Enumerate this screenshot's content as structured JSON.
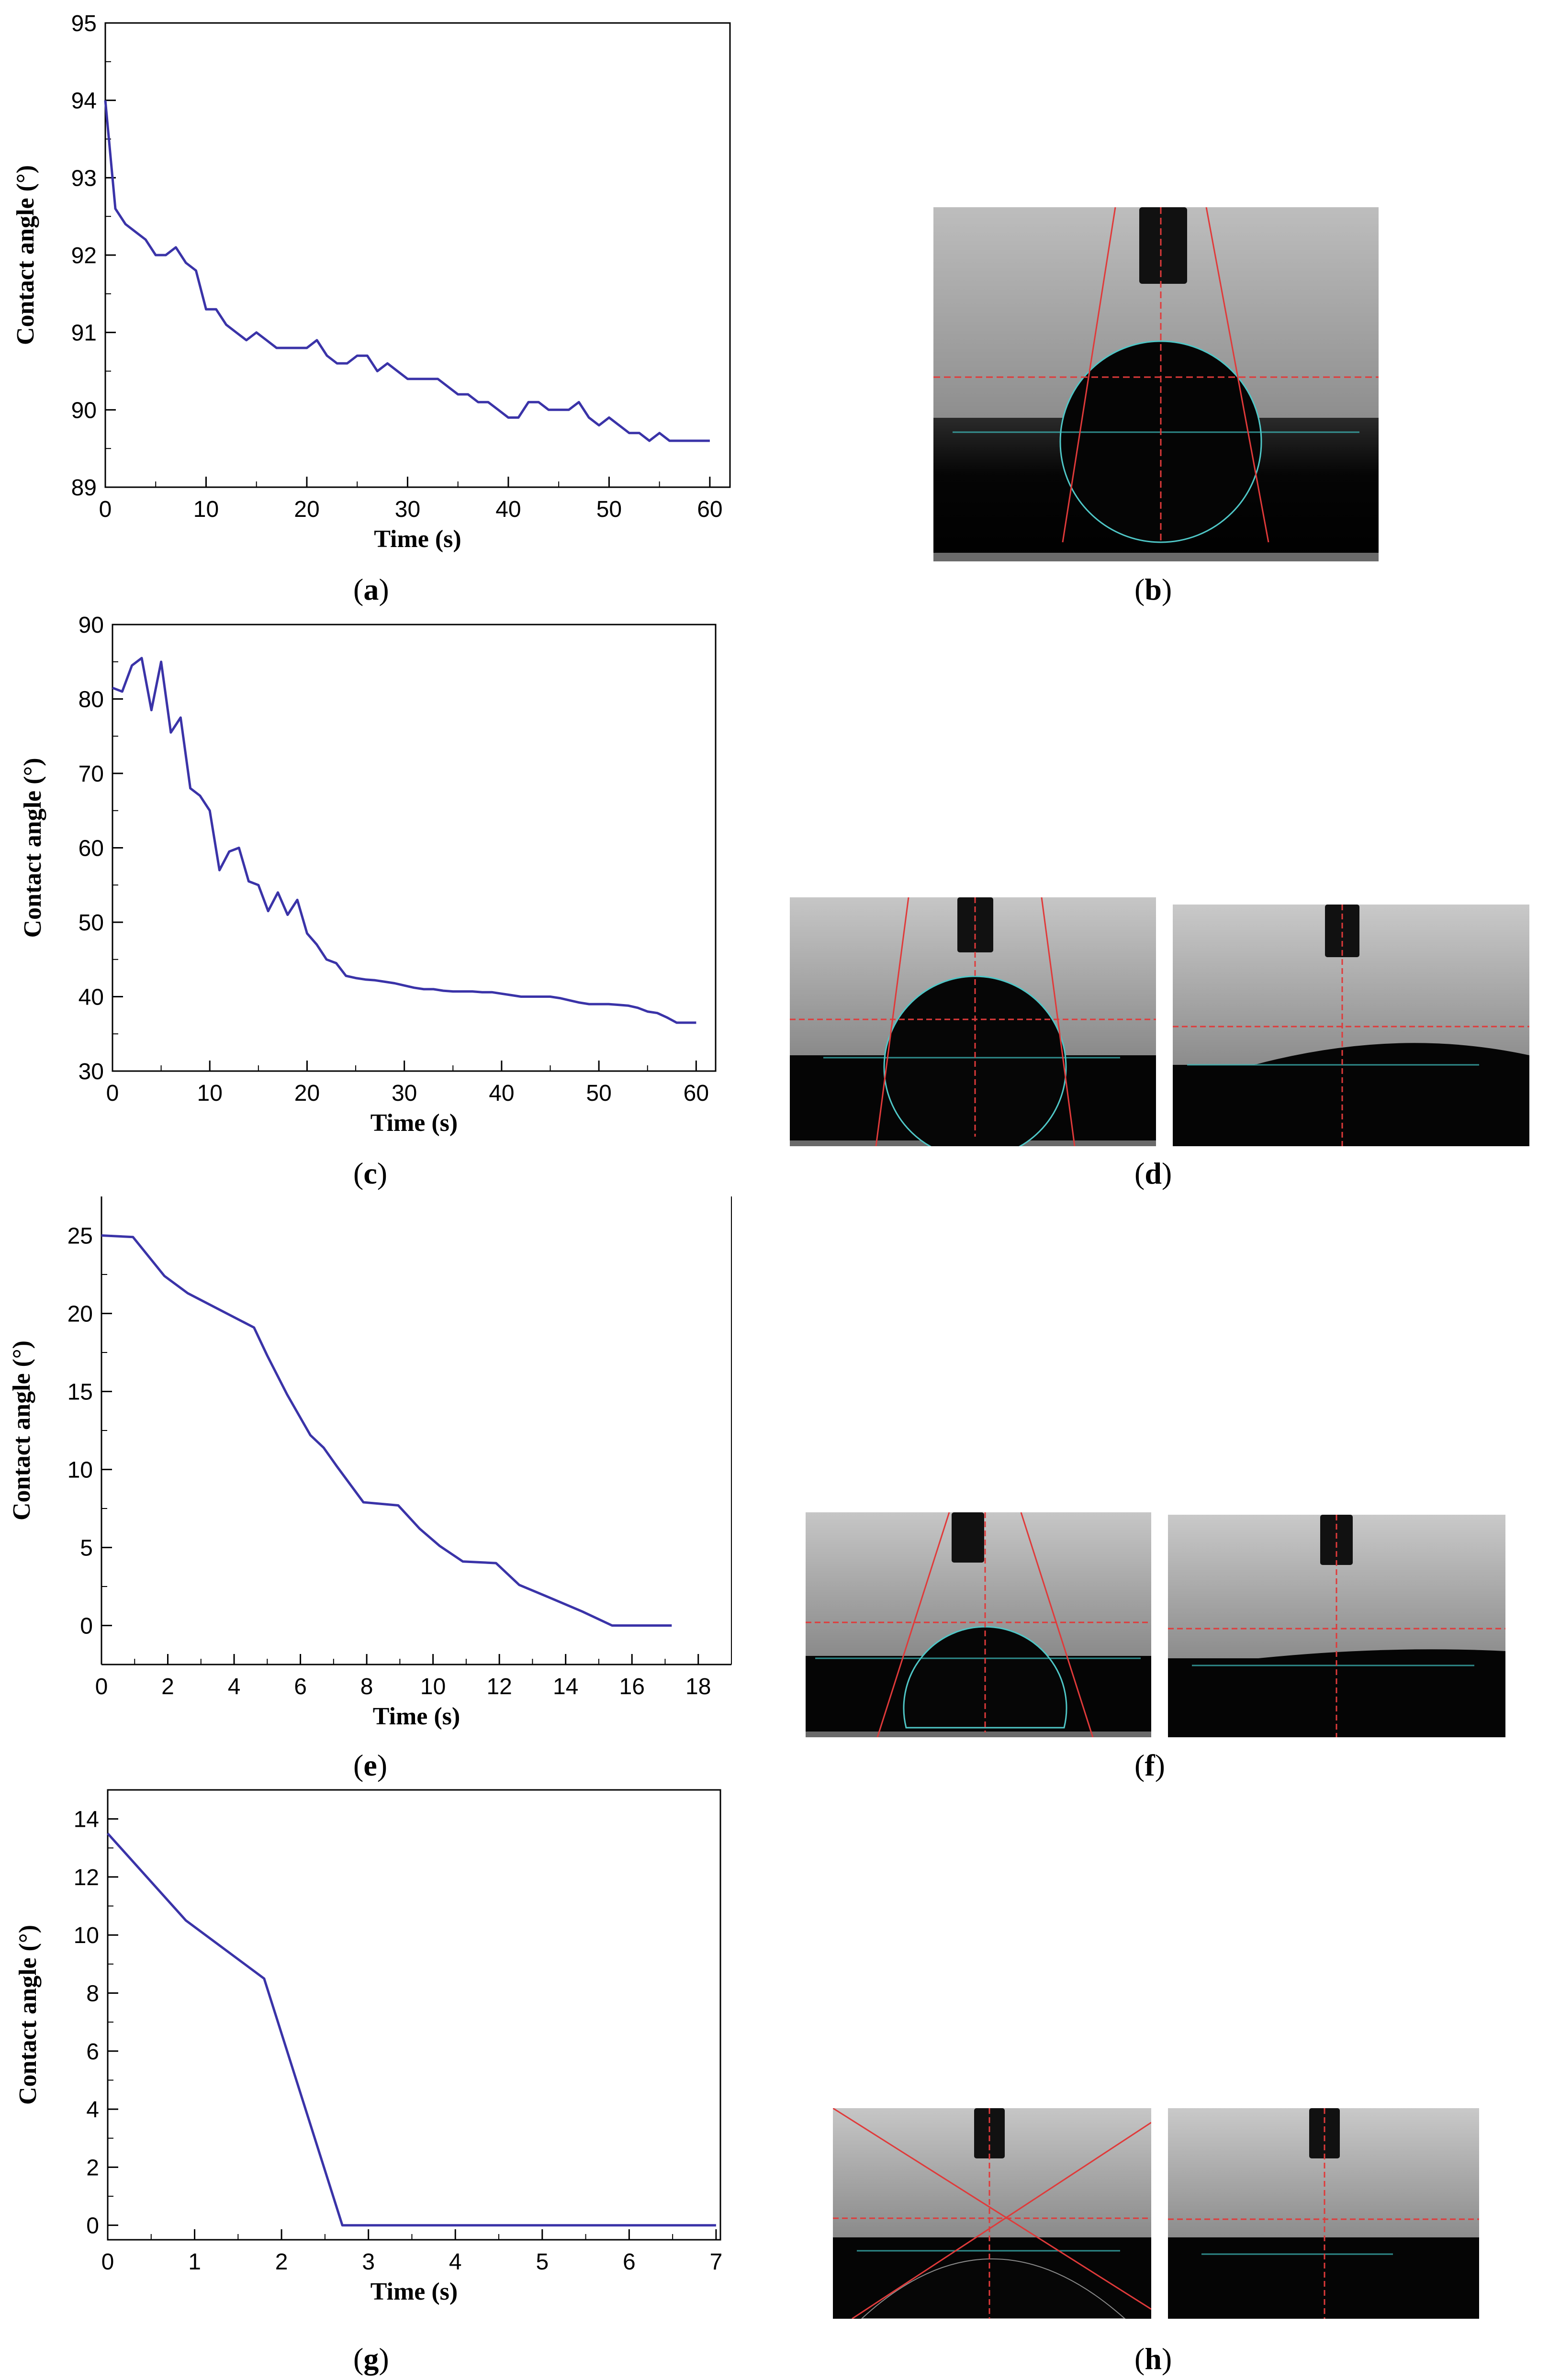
{
  "panel_labels": {
    "a": {
      "open": "(",
      "letter": "a",
      "close": ")"
    },
    "b": {
      "open": "(",
      "letter": "b",
      "close": ")"
    },
    "c": {
      "open": "(",
      "letter": "c",
      "close": ")"
    },
    "d": {
      "open": "(",
      "letter": "d",
      "close": ")"
    },
    "e": {
      "open": "(",
      "letter": "e",
      "close": ")"
    },
    "f": {
      "open": "(",
      "letter": "f",
      "close": ")"
    },
    "g": {
      "open": "(",
      "letter": "g",
      "close": ")"
    },
    "h": {
      "open": "(",
      "letter": "h",
      "close": ")"
    }
  },
  "colors": {
    "line": "#3a33a8",
    "fit_red": "#e03a3a",
    "fit_cyan": "#40c4c4"
  },
  "chart_data": [
    {
      "id": "a",
      "type": "line",
      "xlabel": "Time (s)",
      "ylabel": "Contact angle (°)",
      "xlim": [
        0,
        62
      ],
      "ylim": [
        89,
        95
      ],
      "xticks": [
        0,
        10,
        20,
        30,
        40,
        50,
        60
      ],
      "yticks": [
        89,
        90,
        91,
        92,
        93,
        94,
        95
      ],
      "series": [
        {
          "x": [
            0,
            1,
            2,
            3,
            4,
            5,
            6,
            7,
            8,
            9,
            10,
            11,
            12,
            13,
            14,
            15,
            16,
            17,
            18,
            19,
            20,
            21,
            22,
            23,
            24,
            25,
            26,
            27,
            28,
            29,
            30,
            31,
            32,
            33,
            34,
            35,
            36,
            37,
            38,
            39,
            40,
            41,
            42,
            43,
            44,
            45,
            46,
            47,
            48,
            49,
            50,
            51,
            52,
            53,
            54,
            55,
            56,
            57,
            58,
            59,
            60
          ],
          "y": [
            94.0,
            92.6,
            92.4,
            92.3,
            92.2,
            92.0,
            92.0,
            92.1,
            91.9,
            91.8,
            91.3,
            91.3,
            91.1,
            91.0,
            90.9,
            91.0,
            90.9,
            90.8,
            90.8,
            90.8,
            90.8,
            90.9,
            90.7,
            90.6,
            90.6,
            90.7,
            90.7,
            90.5,
            90.6,
            90.5,
            90.4,
            90.4,
            90.4,
            90.4,
            90.3,
            90.2,
            90.2,
            90.1,
            90.1,
            90.0,
            89.9,
            89.9,
            90.1,
            90.1,
            90.0,
            90.0,
            90.0,
            90.1,
            89.9,
            89.8,
            89.9,
            89.8,
            89.7,
            89.7,
            89.6,
            89.7,
            89.6,
            89.6,
            89.6,
            89.6,
            89.6
          ]
        }
      ]
    },
    {
      "id": "c",
      "type": "line",
      "xlabel": "Time (s)",
      "ylabel": "Contact angle (°)",
      "xlim": [
        0,
        62
      ],
      "ylim": [
        30,
        90
      ],
      "xticks": [
        0,
        10,
        20,
        30,
        40,
        50,
        60
      ],
      "yticks": [
        30,
        40,
        50,
        60,
        70,
        80,
        90
      ],
      "series": [
        {
          "x": [
            0,
            1,
            2,
            3,
            4,
            5,
            6,
            7,
            8,
            9,
            10,
            11,
            12,
            13,
            14,
            15,
            16,
            17,
            18,
            19,
            20,
            21,
            22,
            23,
            24,
            25,
            26,
            27,
            28,
            29,
            30,
            31,
            32,
            33,
            34,
            35,
            36,
            37,
            38,
            39,
            40,
            41,
            42,
            43,
            44,
            45,
            46,
            47,
            48,
            49,
            50,
            51,
            52,
            53,
            54,
            55,
            56,
            57,
            58,
            59,
            60
          ],
          "y": [
            81.5,
            81.0,
            84.5,
            85.5,
            78.5,
            85.0,
            75.5,
            77.5,
            68.0,
            67.0,
            65.0,
            57.0,
            59.5,
            60.0,
            55.5,
            55.0,
            51.5,
            54.0,
            51.0,
            53.0,
            48.5,
            47.0,
            45.0,
            44.5,
            42.8,
            42.5,
            42.3,
            42.2,
            42.0,
            41.8,
            41.5,
            41.2,
            41.0,
            41.0,
            40.8,
            40.7,
            40.7,
            40.7,
            40.6,
            40.6,
            40.4,
            40.2,
            40.0,
            40.0,
            40.0,
            40.0,
            39.8,
            39.5,
            39.2,
            39.0,
            39.0,
            39.0,
            38.9,
            38.8,
            38.5,
            38.0,
            37.8,
            37.2,
            36.5,
            36.5,
            36.5
          ]
        }
      ]
    },
    {
      "id": "e",
      "type": "line",
      "xlabel": "Time (s)",
      "ylabel": "Contact angle (°)",
      "xlim": [
        0,
        19
      ],
      "ylim": [
        -2.5,
        27.5
      ],
      "xticks": [
        0,
        2,
        4,
        6,
        8,
        10,
        12,
        14,
        16,
        18
      ],
      "yticks": [
        0,
        5,
        10,
        15,
        20,
        25
      ],
      "series": [
        {
          "x": [
            0,
            0.95,
            1.9,
            2.6,
            3.6,
            4.6,
            5.0,
            5.6,
            6.3,
            6.7,
            7.1,
            7.9,
            8.95,
            9.6,
            10.2,
            10.9,
            11.9,
            12.6,
            13.5,
            14.5,
            15.4,
            16.5,
            17.2
          ],
          "y": [
            25.0,
            24.9,
            22.4,
            21.3,
            20.2,
            19.1,
            17.3,
            14.8,
            12.2,
            11.4,
            10.2,
            7.9,
            7.7,
            6.2,
            5.1,
            4.1,
            4.0,
            2.6,
            1.8,
            0.9,
            0.0,
            0.0,
            0.0
          ]
        }
      ]
    },
    {
      "id": "g",
      "type": "line",
      "xlabel": "Time (s)",
      "ylabel": "Contact angle (°)",
      "xlim": [
        0,
        7.05
      ],
      "ylim": [
        -0.5,
        15
      ],
      "xticks": [
        0,
        1,
        2,
        3,
        4,
        5,
        6,
        7
      ],
      "yticks": [
        0,
        2,
        4,
        6,
        8,
        10,
        12,
        14
      ],
      "series": [
        {
          "x": [
            0,
            0.9,
            1.8,
            2.7,
            7.0
          ],
          "y": [
            13.5,
            10.5,
            8.5,
            0.0,
            0.0
          ]
        }
      ]
    }
  ]
}
